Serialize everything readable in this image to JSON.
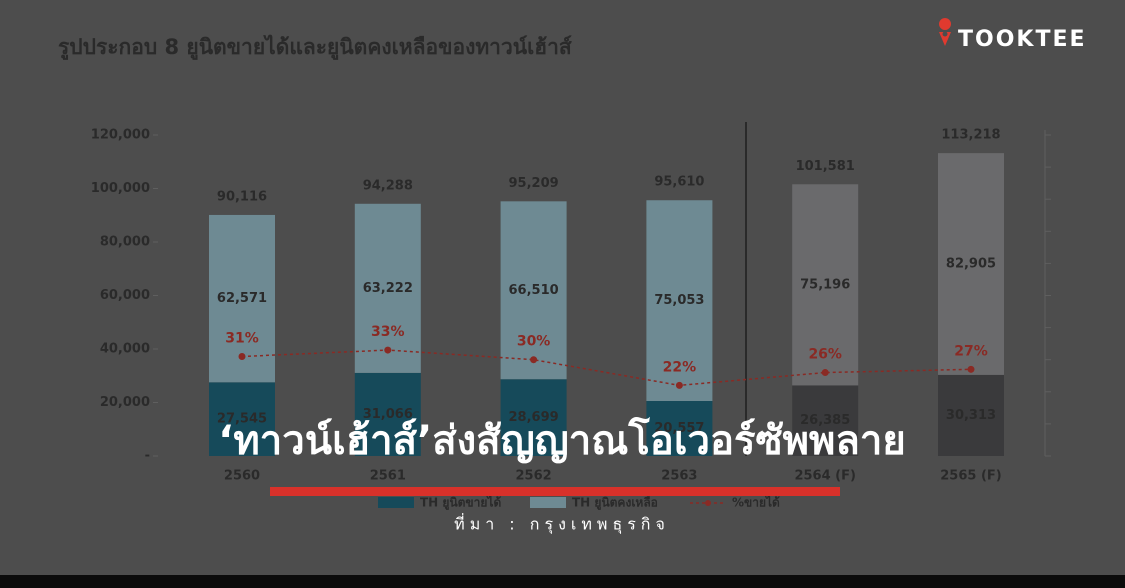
{
  "chart_data": {
    "type": "stacked_bar_line",
    "title": "รูปประกอบ 8 ยูนิตขายได้และยูนิตคงเหลือของทาวน์เฮ้าส์",
    "categories": [
      "2560",
      "2561",
      "2562",
      "2563",
      "2564 (F)",
      "2565 (F)"
    ],
    "series": [
      {
        "name": "TH ยูนิตขายได้",
        "color": "#164a5a",
        "colors": [
          "#164a5a",
          "#164a5a",
          "#164a5a",
          "#164a5a",
          "#3a3a3c",
          "#3a3a3c"
        ],
        "values": [
          27545,
          31066,
          28699,
          20557,
          26385,
          30313
        ],
        "value_labels": [
          "27,545",
          "31,066",
          "28,699",
          "20,557",
          "26,385",
          "30,313"
        ]
      },
      {
        "name": "TH ยูนิตคงเหลือ",
        "color": "#6e8a93",
        "colors": [
          "#6e8a93",
          "#6e8a93",
          "#6e8a93",
          "#6e8a93",
          "#6a6a6c",
          "#6a6a6c"
        ],
        "values": [
          62571,
          63222,
          66510,
          75053,
          75196,
          82905
        ],
        "value_labels": [
          "62,571",
          "63,222",
          "66,510",
          "75,053",
          "75,196",
          "82,905"
        ]
      },
      {
        "name": "%ขายได้",
        "color": "#8a2a24",
        "axis": "y2",
        "values": [
          31,
          33,
          30,
          22,
          26,
          27
        ],
        "value_labels": [
          "31%",
          "33%",
          "30%",
          "22%",
          "26%",
          "27%"
        ]
      }
    ],
    "totals": [
      90116,
      94288,
      95209,
      95610,
      101581,
      113218
    ],
    "total_labels": [
      "90,116",
      "94,288",
      "95,209",
      "95,610",
      "101,581",
      "113,218"
    ],
    "ylim": [
      0,
      120000
    ],
    "yticks": [
      {
        "value": 0,
        "label": "-"
      },
      {
        "value": 20000,
        "label": "20,000"
      },
      {
        "value": 40000,
        "label": "40,000"
      },
      {
        "value": 60000,
        "label": "60,000"
      },
      {
        "value": 80000,
        "label": "80,000"
      },
      {
        "value": 100000,
        "label": "100,000"
      },
      {
        "value": 120000,
        "label": "120,000"
      }
    ],
    "y2lim": [
      0,
      100
    ],
    "y2ticks": [
      0,
      10,
      20,
      30,
      40,
      50,
      60,
      70,
      80,
      90,
      100
    ]
  },
  "headline": "‘ทาวน์เฮ้าส์’ส่งสัญญาณโอเวอร์ซัพพลาย",
  "source": "ที่มา : กรุงเทพธุรกิจ",
  "brand": "TOOKTEE"
}
